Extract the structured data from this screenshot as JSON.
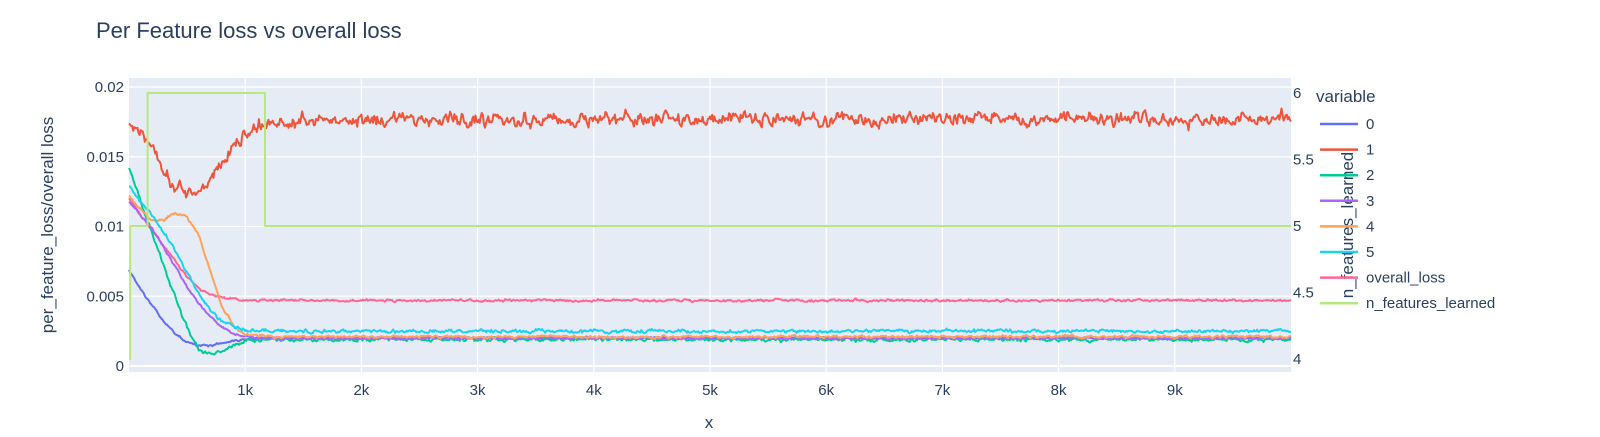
{
  "chart_data": {
    "type": "line",
    "title": "Per Feature loss vs overall loss",
    "xlabel": "x",
    "ylabel": "per_feature_loss/overall loss",
    "y2label": "n_features_learned",
    "xlim": [
      0,
      10000
    ],
    "ylim": [
      0,
      0.02
    ],
    "y2lim": [
      4,
      6
    ],
    "x_ticks": [
      1000,
      2000,
      3000,
      4000,
      5000,
      6000,
      7000,
      8000,
      9000
    ],
    "x_tick_labels": [
      "1k",
      "2k",
      "3k",
      "4k",
      "5k",
      "6k",
      "7k",
      "8k",
      "9k"
    ],
    "y_ticks": [
      0,
      0.005,
      0.01,
      0.015,
      0.02
    ],
    "y_tick_labels": [
      "0",
      "0.005",
      "0.01",
      "0.015",
      "0.02"
    ],
    "y2_ticks": [
      4,
      4.5,
      5,
      5.5,
      6
    ],
    "y2_tick_labels": [
      "4",
      "4.5",
      "5",
      "5.5",
      "6"
    ],
    "grid": true,
    "legend_title": "variable",
    "legend_position": "right",
    "series": [
      {
        "name": "0",
        "color": "#636efa",
        "axis": "y",
        "x": [
          0,
          100,
          200,
          300,
          400,
          500,
          600,
          700,
          800,
          900,
          1000,
          1200,
          1500,
          2000,
          3000,
          5000,
          7000,
          9000,
          10000
        ],
        "values": [
          0.0069,
          0.0055,
          0.0043,
          0.0032,
          0.0023,
          0.0017,
          0.00145,
          0.00148,
          0.00165,
          0.0018,
          0.0019,
          0.002,
          0.002,
          0.002,
          0.002,
          0.002,
          0.002,
          0.002,
          0.002
        ],
        "noise": 0.0001
      },
      {
        "name": "1",
        "color": "#ef553b",
        "axis": "y",
        "x": [
          0,
          100,
          200,
          300,
          400,
          500,
          600,
          700,
          800,
          900,
          1000,
          1100,
          1200,
          1500,
          2000,
          3000,
          4000,
          5000,
          6000,
          7000,
          8000,
          9000,
          10000
        ],
        "values": [
          0.0172,
          0.0168,
          0.0158,
          0.0142,
          0.0128,
          0.0124,
          0.0126,
          0.0133,
          0.0146,
          0.0158,
          0.0166,
          0.017,
          0.0173,
          0.0176,
          0.0177,
          0.0177,
          0.0177,
          0.0177,
          0.0177,
          0.0177,
          0.0177,
          0.0177,
          0.0177
        ],
        "noise": 0.0007
      },
      {
        "name": "2",
        "color": "#00cc96",
        "axis": "y",
        "x": [
          0,
          100,
          200,
          300,
          400,
          500,
          600,
          700,
          800,
          900,
          1000,
          1200,
          1500,
          2000,
          3000,
          5000,
          7000,
          9000,
          10000
        ],
        "values": [
          0.0143,
          0.0118,
          0.0095,
          0.0072,
          0.0048,
          0.0027,
          0.0012,
          0.0008,
          0.0011,
          0.0015,
          0.0018,
          0.0019,
          0.0019,
          0.0019,
          0.0019,
          0.0019,
          0.0019,
          0.0019,
          0.0019
        ],
        "noise": 0.0002
      },
      {
        "name": "3",
        "color": "#ab63fa",
        "axis": "y",
        "x": [
          0,
          100,
          200,
          300,
          400,
          500,
          600,
          700,
          800,
          900,
          1000,
          1200,
          1500,
          2000,
          3000,
          5000,
          7000,
          9000,
          10000
        ],
        "values": [
          0.0118,
          0.0108,
          0.0098,
          0.0085,
          0.0071,
          0.0057,
          0.0045,
          0.0035,
          0.0028,
          0.0023,
          0.0021,
          0.002,
          0.002,
          0.002,
          0.002,
          0.002,
          0.002,
          0.002,
          0.002
        ],
        "noise": 0.00012
      },
      {
        "name": "4",
        "color": "#ffa15a",
        "axis": "y",
        "x": [
          0,
          100,
          200,
          300,
          400,
          500,
          600,
          700,
          800,
          900,
          1000,
          1200,
          1500,
          2000,
          3000,
          5000,
          7000,
          9000,
          10000
        ],
        "values": [
          0.0122,
          0.0112,
          0.0104,
          0.0105,
          0.011,
          0.0107,
          0.0094,
          0.0068,
          0.0043,
          0.0029,
          0.0023,
          0.0021,
          0.0021,
          0.0021,
          0.0021,
          0.0021,
          0.0021,
          0.0021,
          0.0021
        ],
        "noise": 0.00015
      },
      {
        "name": "5",
        "color": "#19d3f3",
        "axis": "y",
        "x": [
          0,
          100,
          200,
          300,
          400,
          500,
          600,
          700,
          800,
          900,
          1000,
          1200,
          1500,
          2000,
          3000,
          5000,
          7000,
          9000,
          10000
        ],
        "values": [
          0.0128,
          0.0118,
          0.0108,
          0.0096,
          0.0082,
          0.0067,
          0.0052,
          0.004,
          0.0032,
          0.0028,
          0.0026,
          0.0025,
          0.0025,
          0.0025,
          0.0025,
          0.0025,
          0.0025,
          0.0025,
          0.0025
        ],
        "noise": 0.00018
      },
      {
        "name": "overall_loss",
        "color": "#ff6692",
        "axis": "y",
        "x": [
          0,
          100,
          200,
          300,
          400,
          500,
          600,
          700,
          800,
          900,
          1000,
          1200,
          1500,
          2000,
          3000,
          5000,
          7000,
          9000,
          10000
        ],
        "values": [
          0.012,
          0.0108,
          0.0097,
          0.0086,
          0.0075,
          0.0064,
          0.0056,
          0.0051,
          0.0049,
          0.0048,
          0.0047,
          0.0047,
          0.0047,
          0.0047,
          0.0047,
          0.0047,
          0.0047,
          0.0047,
          0.0047
        ],
        "noise": 0.00012
      },
      {
        "name": "n_features_learned",
        "color": "#b6e880",
        "axis": "y2",
        "shape": "step",
        "x": [
          0,
          10,
          10,
          160,
          160,
          1170,
          1170,
          10000
        ],
        "values": [
          4,
          4,
          5,
          5,
          6,
          6,
          5,
          5
        ]
      }
    ]
  }
}
